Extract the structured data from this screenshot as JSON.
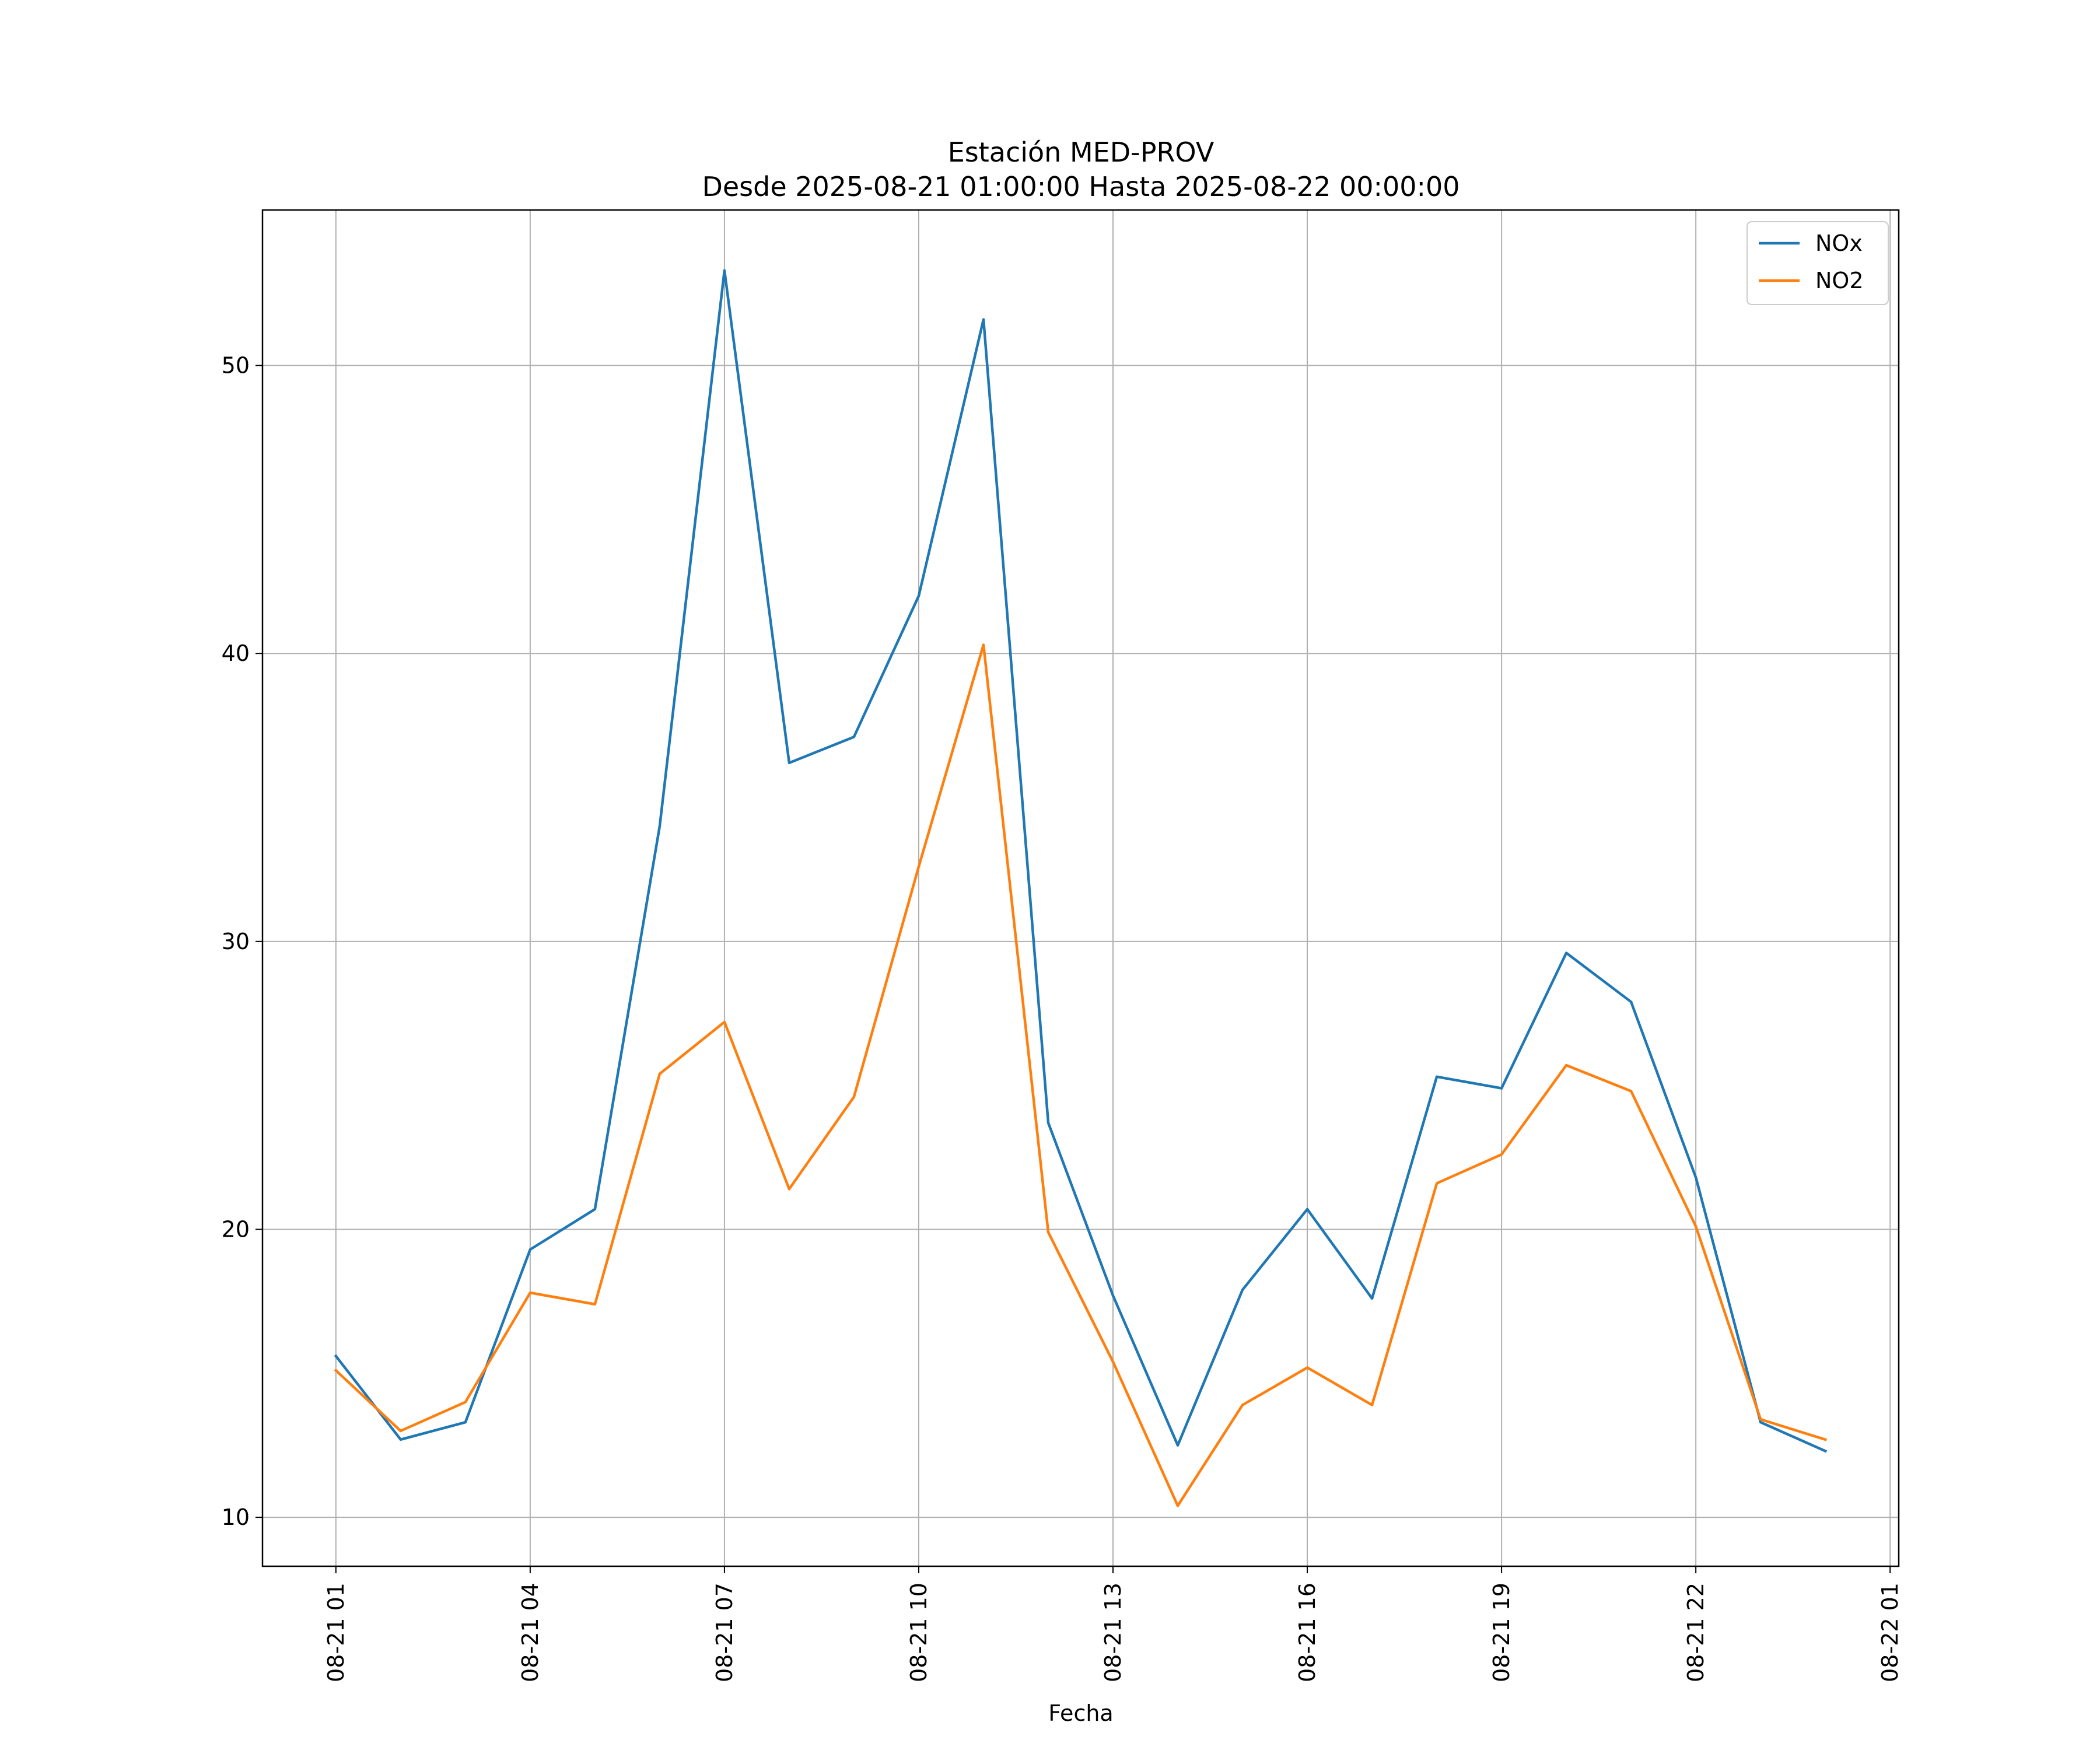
{
  "chart_data": {
    "type": "line",
    "title": "Estación MED-PROV",
    "subtitle": "Desde 2025-08-21 01:00:00 Hasta 2025-08-22 00:00:00",
    "xlabel": "Fecha",
    "ylabel": "",
    "x": [
      "2025-08-21 01:00",
      "2025-08-21 02:00",
      "2025-08-21 03:00",
      "2025-08-21 04:00",
      "2025-08-21 05:00",
      "2025-08-21 06:00",
      "2025-08-21 07:00",
      "2025-08-21 08:00",
      "2025-08-21 09:00",
      "2025-08-21 10:00",
      "2025-08-21 11:00",
      "2025-08-21 12:00",
      "2025-08-21 13:00",
      "2025-08-21 14:00",
      "2025-08-21 15:00",
      "2025-08-21 16:00",
      "2025-08-21 17:00",
      "2025-08-21 18:00",
      "2025-08-21 19:00",
      "2025-08-21 20:00",
      "2025-08-21 21:00",
      "2025-08-21 22:00",
      "2025-08-21 23:00",
      "2025-08-22 00:00"
    ],
    "series": [
      {
        "name": "NOx",
        "color": "#1f77b4",
        "values": [
          15.6,
          12.7,
          13.3,
          19.3,
          20.7,
          34.0,
          53.3,
          36.2,
          37.1,
          42.0,
          51.6,
          23.7,
          17.7,
          12.5,
          17.9,
          20.7,
          17.6,
          25.3,
          24.9,
          29.6,
          27.9,
          21.8,
          13.3,
          12.3
        ]
      },
      {
        "name": "NO2",
        "color": "#ff7f0e",
        "values": [
          15.1,
          13.0,
          14.0,
          17.8,
          17.4,
          25.4,
          27.2,
          21.4,
          24.6,
          32.6,
          40.3,
          19.9,
          15.4,
          10.4,
          13.9,
          15.2,
          13.9,
          21.6,
          22.6,
          25.7,
          24.8,
          20.1,
          13.4,
          12.7
        ]
      }
    ],
    "xticks": [
      "08-21 01",
      "08-21 04",
      "08-21 07",
      "08-21 10",
      "08-21 13",
      "08-21 16",
      "08-21 19",
      "08-21 22",
      "08-22 01"
    ],
    "yticks": [
      10,
      20,
      30,
      40,
      50
    ],
    "xlim": [
      "2025-08-20 23:52",
      "2025-08-22 01:08"
    ],
    "ylim": [
      8.3,
      55.4
    ],
    "grid": true,
    "legend_position": "top-right"
  }
}
